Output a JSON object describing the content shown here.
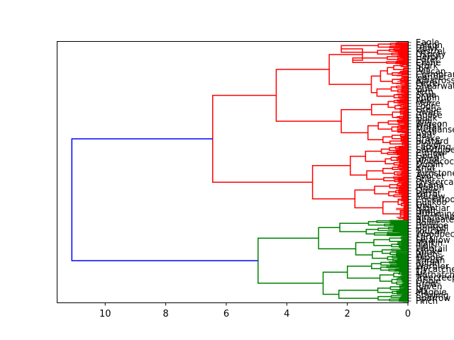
{
  "chart_data": {
    "type": "dendrogram",
    "orientation": "left",
    "xlim": [
      11.6,
      0
    ],
    "x_ticks": [
      10,
      8,
      6,
      4,
      2,
      0
    ],
    "x_tick_labels": [
      "10",
      "8",
      "6",
      "4",
      "2",
      "0"
    ],
    "colors": {
      "cluster_1": "#ff0000",
      "cluster_2": "#008000",
      "above_threshold": "#0000ff"
    },
    "clusters": [
      {
        "name": "cluster_1",
        "color": "#ff0000",
        "leaf_fraction": 0.685
      },
      {
        "name": "cluster_2",
        "color": "#008000",
        "leaf_fraction": 0.315
      }
    ],
    "links": [
      {
        "color": "#0000ff",
        "height": 11.1,
        "children": [
          "cluster_1_root",
          "cluster_2_root"
        ]
      },
      {
        "color": "#ff0000",
        "height": 6.45,
        "children": [
          "a",
          "b"
        ]
      },
      {
        "color": "#ff0000",
        "height": 4.35,
        "children": [
          "a1",
          "a2"
        ]
      },
      {
        "color": "#ff0000",
        "height": 3.15,
        "children": [
          "b1",
          "b2"
        ]
      },
      {
        "color": "#ff0000",
        "height": 2.6,
        "children": [
          "a1x",
          "a1y"
        ]
      },
      {
        "color": "#ff0000",
        "height": 2.2,
        "children": [
          "a2x",
          "a2y"
        ]
      },
      {
        "color": "#ff0000",
        "height": 1.9,
        "children": [
          "b1x",
          "b1y"
        ]
      },
      {
        "color": "#ff0000",
        "height": 1.75,
        "children": [
          "b2x",
          "b2y"
        ]
      },
      {
        "color": "#008000",
        "height": 4.95,
        "children": [
          "g1",
          "g2"
        ]
      },
      {
        "color": "#008000",
        "height": 2.95,
        "children": [
          "g1x",
          "g1y"
        ]
      },
      {
        "color": "#008000",
        "height": 2.8,
        "children": [
          "g2x",
          "g2y"
        ]
      }
    ],
    "leaf_labels": [
      "Eagle",
      "Falcon",
      "Hawk",
      "Kestrel",
      "Osprey",
      "Heron",
      "Egret",
      "Crane",
      "Stork",
      "Ibis",
      "Pelican",
      "Cormorant",
      "Gannet",
      "Albatross",
      "Petrel",
      "Shearwater",
      "Gull",
      "Tern",
      "Skua",
      "Puffin",
      "Auk",
      "Murre",
      "Loon",
      "Grebe",
      "Swan",
      "Goose",
      "Duck",
      "Teal",
      "Wigeon",
      "Pintail",
      "Merganser",
      "Coot",
      "Rail",
      "Crake",
      "Bustard",
      "Plover",
      "Lapwing",
      "Sandpiper",
      "Curlew",
      "Godwit",
      "Snipe",
      "Woodcock",
      "Dunlin",
      "Knot",
      "Stint",
      "Turnstone",
      "Avocet",
      "Stilt",
      "Oystercatcher",
      "Jacana",
      "Pigeon",
      "Dove",
      "Parrot",
      "Macaw",
      "Cockatoo",
      "Cuckoo",
      "Owl",
      "Nightjar",
      "Swift",
      "Hummingbird",
      "Kingfisher",
      "Bee-eater",
      "Roller",
      "Hoopoe",
      "Hornbill",
      "Toucan",
      "Woodpecker",
      "Lark",
      "Swallow",
      "Martin",
      "Pipit",
      "Wagtail",
      "Shrike",
      "Wren",
      "Dipper",
      "Thrush",
      "Robin",
      "Warbler",
      "Flycatcher",
      "Tit",
      "Nuthatch",
      "Treecreeper",
      "Oriole",
      "Crow",
      "Raven",
      "Jay",
      "Magpie",
      "Starling",
      "Sparrow",
      "Finch"
    ]
  }
}
